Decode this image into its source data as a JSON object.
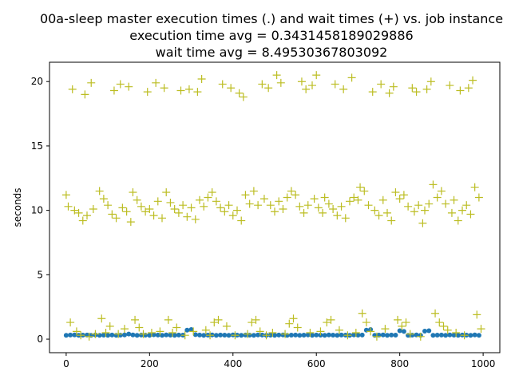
{
  "chart_data": {
    "type": "scatter",
    "title_lines": [
      "00a-sleep master execution times (.) and wait times (+) vs. job instance",
      "execution time avg = 0.3431458189029886",
      "wait time avg = 8.49530367803092"
    ],
    "xlabel": "",
    "ylabel": "seconds",
    "xlim": [
      -40,
      1040
    ],
    "ylim": [
      -1.05,
      21.5
    ],
    "xticks": [
      0,
      200,
      400,
      600,
      800,
      1000
    ],
    "yticks": [
      0,
      5,
      10,
      15,
      20
    ],
    "grid": false,
    "colors": {
      "execution": "#1f77b4",
      "wait": "#bcbd22"
    },
    "series": [
      {
        "marker": "dot",
        "color": "#1f77b4",
        "values": [
          [
            0,
            0.3
          ],
          [
            10,
            0.32
          ],
          [
            20,
            0.33
          ],
          [
            30,
            0.3
          ],
          [
            40,
            0.31
          ],
          [
            50,
            0.32
          ],
          [
            60,
            0.3
          ],
          [
            70,
            0.33
          ],
          [
            80,
            0.3
          ],
          [
            90,
            0.31
          ],
          [
            100,
            0.3
          ],
          [
            110,
            0.32
          ],
          [
            120,
            0.3
          ],
          [
            130,
            0.31
          ],
          [
            140,
            0.33
          ],
          [
            150,
            0.4
          ],
          [
            160,
            0.33
          ],
          [
            170,
            0.3
          ],
          [
            180,
            0.32
          ],
          [
            190,
            0.31
          ],
          [
            200,
            0.3
          ],
          [
            210,
            0.34
          ],
          [
            220,
            0.32
          ],
          [
            230,
            0.3
          ],
          [
            240,
            0.33
          ],
          [
            250,
            0.31
          ],
          [
            260,
            0.3
          ],
          [
            270,
            0.32
          ],
          [
            280,
            0.31
          ],
          [
            290,
            0.7
          ],
          [
            300,
            0.75
          ],
          [
            310,
            0.35
          ],
          [
            320,
            0.32
          ],
          [
            330,
            0.3
          ],
          [
            340,
            0.31
          ],
          [
            350,
            0.33
          ],
          [
            360,
            0.3
          ],
          [
            370,
            0.32
          ],
          [
            380,
            0.31
          ],
          [
            390,
            0.3
          ],
          [
            400,
            0.33
          ],
          [
            410,
            0.31
          ],
          [
            420,
            0.3
          ],
          [
            430,
            0.32
          ],
          [
            440,
            0.31
          ],
          [
            450,
            0.3
          ],
          [
            460,
            0.33
          ],
          [
            470,
            0.32
          ],
          [
            480,
            0.3
          ],
          [
            490,
            0.31
          ],
          [
            500,
            0.3
          ],
          [
            510,
            0.32
          ],
          [
            520,
            0.33
          ],
          [
            530,
            0.3
          ],
          [
            540,
            0.31
          ],
          [
            550,
            0.32
          ],
          [
            560,
            0.3
          ],
          [
            570,
            0.31
          ],
          [
            580,
            0.33
          ],
          [
            590,
            0.3
          ],
          [
            600,
            0.32
          ],
          [
            610,
            0.31
          ],
          [
            620,
            0.3
          ],
          [
            630,
            0.33
          ],
          [
            640,
            0.31
          ],
          [
            650,
            0.3
          ],
          [
            660,
            0.32
          ],
          [
            670,
            0.31
          ],
          [
            680,
            0.3
          ],
          [
            690,
            0.33
          ],
          [
            700,
            0.31
          ],
          [
            710,
            0.32
          ],
          [
            720,
            0.7
          ],
          [
            730,
            0.75
          ],
          [
            740,
            0.3
          ],
          [
            750,
            0.31
          ],
          [
            760,
            0.33
          ],
          [
            770,
            0.3
          ],
          [
            780,
            0.32
          ],
          [
            790,
            0.31
          ],
          [
            800,
            0.65
          ],
          [
            810,
            0.6
          ],
          [
            820,
            0.3
          ],
          [
            830,
            0.31
          ],
          [
            840,
            0.33
          ],
          [
            850,
            0.3
          ],
          [
            860,
            0.62
          ],
          [
            870,
            0.65
          ],
          [
            880,
            0.3
          ],
          [
            890,
            0.31
          ],
          [
            900,
            0.32
          ],
          [
            910,
            0.3
          ],
          [
            920,
            0.33
          ],
          [
            930,
            0.31
          ],
          [
            940,
            0.3
          ],
          [
            950,
            0.32
          ],
          [
            960,
            0.31
          ],
          [
            970,
            0.3
          ],
          [
            980,
            0.33
          ],
          [
            990,
            0.3
          ]
        ]
      },
      {
        "marker": "plus",
        "color": "#bcbd22",
        "values": [
          [
            0,
            11.2
          ],
          [
            5,
            10.3
          ],
          [
            10,
            1.3
          ],
          [
            15,
            19.4
          ],
          [
            20,
            10.0
          ],
          [
            25,
            0.6
          ],
          [
            30,
            9.8
          ],
          [
            35,
            0.3
          ],
          [
            40,
            9.2
          ],
          [
            45,
            19.0
          ],
          [
            50,
            9.6
          ],
          [
            55,
            0.2
          ],
          [
            60,
            19.9
          ],
          [
            65,
            10.1
          ],
          [
            70,
            0.4
          ],
          [
            80,
            11.5
          ],
          [
            85,
            1.6
          ],
          [
            90,
            10.9
          ],
          [
            95,
            0.5
          ],
          [
            100,
            10.4
          ],
          [
            105,
            1.0
          ],
          [
            110,
            9.7
          ],
          [
            115,
            19.3
          ],
          [
            120,
            9.4
          ],
          [
            125,
            0.4
          ],
          [
            130,
            19.8
          ],
          [
            135,
            10.2
          ],
          [
            140,
            0.8
          ],
          [
            145,
            9.9
          ],
          [
            150,
            19.6
          ],
          [
            155,
            9.1
          ],
          [
            160,
            11.4
          ],
          [
            165,
            1.5
          ],
          [
            170,
            10.8
          ],
          [
            175,
            0.9
          ],
          [
            180,
            10.3
          ],
          [
            185,
            0.4
          ],
          [
            190,
            9.9
          ],
          [
            195,
            19.2
          ],
          [
            200,
            10.1
          ],
          [
            205,
            0.5
          ],
          [
            210,
            9.6
          ],
          [
            215,
            19.9
          ],
          [
            220,
            10.7
          ],
          [
            225,
            0.6
          ],
          [
            230,
            9.4
          ],
          [
            235,
            19.5
          ],
          [
            240,
            11.4
          ],
          [
            245,
            1.5
          ],
          [
            250,
            10.6
          ],
          [
            255,
            0.5
          ],
          [
            260,
            10.1
          ],
          [
            265,
            0.9
          ],
          [
            270,
            9.8
          ],
          [
            275,
            19.3
          ],
          [
            280,
            10.4
          ],
          [
            285,
            0.3
          ],
          [
            290,
            9.5
          ],
          [
            295,
            19.4
          ],
          [
            300,
            10.2
          ],
          [
            305,
            0.6
          ],
          [
            310,
            9.3
          ],
          [
            315,
            19.2
          ],
          [
            320,
            10.8
          ],
          [
            325,
            20.2
          ],
          [
            330,
            10.3
          ],
          [
            335,
            0.7
          ],
          [
            340,
            11.0
          ],
          [
            345,
            0.3
          ],
          [
            350,
            11.4
          ],
          [
            355,
            1.3
          ],
          [
            360,
            10.7
          ],
          [
            365,
            1.5
          ],
          [
            370,
            10.2
          ],
          [
            375,
            19.8
          ],
          [
            380,
            9.9
          ],
          [
            385,
            1.0
          ],
          [
            390,
            10.4
          ],
          [
            395,
            19.5
          ],
          [
            400,
            9.6
          ],
          [
            405,
            0.3
          ],
          [
            410,
            10.0
          ],
          [
            415,
            19.1
          ],
          [
            420,
            9.2
          ],
          [
            425,
            18.8
          ],
          [
            430,
            11.2
          ],
          [
            435,
            0.4
          ],
          [
            440,
            10.5
          ],
          [
            445,
            1.3
          ],
          [
            450,
            11.5
          ],
          [
            455,
            1.5
          ],
          [
            460,
            10.4
          ],
          [
            465,
            0.6
          ],
          [
            470,
            19.8
          ],
          [
            475,
            10.9
          ],
          [
            480,
            0.3
          ],
          [
            485,
            19.5
          ],
          [
            490,
            10.4
          ],
          [
            495,
            0.5
          ],
          [
            500,
            9.9
          ],
          [
            505,
            20.5
          ],
          [
            510,
            10.7
          ],
          [
            515,
            19.9
          ],
          [
            520,
            10.1
          ],
          [
            525,
            0.4
          ],
          [
            530,
            11.0
          ],
          [
            535,
            1.2
          ],
          [
            540,
            11.5
          ],
          [
            545,
            1.6
          ],
          [
            550,
            11.2
          ],
          [
            555,
            0.9
          ],
          [
            560,
            10.3
          ],
          [
            565,
            20.0
          ],
          [
            570,
            9.8
          ],
          [
            575,
            19.4
          ],
          [
            580,
            10.4
          ],
          [
            585,
            0.5
          ],
          [
            590,
            19.7
          ],
          [
            595,
            10.9
          ],
          [
            600,
            20.5
          ],
          [
            605,
            10.2
          ],
          [
            610,
            0.6
          ],
          [
            615,
            9.8
          ],
          [
            620,
            11.0
          ],
          [
            625,
            1.3
          ],
          [
            630,
            10.5
          ],
          [
            635,
            1.5
          ],
          [
            640,
            10.1
          ],
          [
            645,
            19.8
          ],
          [
            650,
            9.6
          ],
          [
            655,
            0.7
          ],
          [
            660,
            10.3
          ],
          [
            665,
            19.4
          ],
          [
            670,
            9.4
          ],
          [
            675,
            0.3
          ],
          [
            680,
            10.7
          ],
          [
            685,
            20.3
          ],
          [
            690,
            11.0
          ],
          [
            695,
            0.5
          ],
          [
            700,
            10.8
          ],
          [
            705,
            11.8
          ],
          [
            710,
            2.0
          ],
          [
            715,
            11.5
          ],
          [
            720,
            1.3
          ],
          [
            725,
            10.4
          ],
          [
            730,
            0.6
          ],
          [
            735,
            19.2
          ],
          [
            740,
            10.0
          ],
          [
            745,
            0.2
          ],
          [
            750,
            9.6
          ],
          [
            755,
            19.8
          ],
          [
            760,
            10.8
          ],
          [
            765,
            0.8
          ],
          [
            770,
            9.8
          ],
          [
            775,
            19.1
          ],
          [
            780,
            9.2
          ],
          [
            785,
            19.6
          ],
          [
            790,
            11.4
          ],
          [
            795,
            1.5
          ],
          [
            800,
            10.9
          ],
          [
            805,
            1.0
          ],
          [
            810,
            11.2
          ],
          [
            815,
            1.3
          ],
          [
            820,
            10.3
          ],
          [
            825,
            0.4
          ],
          [
            830,
            19.5
          ],
          [
            835,
            9.9
          ],
          [
            840,
            19.2
          ],
          [
            845,
            10.4
          ],
          [
            850,
            0.2
          ],
          [
            855,
            9.0
          ],
          [
            860,
            10.0
          ],
          [
            865,
            19.4
          ],
          [
            870,
            10.5
          ],
          [
            875,
            20.0
          ],
          [
            880,
            12.0
          ],
          [
            885,
            2.0
          ],
          [
            890,
            11.0
          ],
          [
            895,
            1.3
          ],
          [
            900,
            11.5
          ],
          [
            905,
            1.0
          ],
          [
            910,
            10.5
          ],
          [
            915,
            0.7
          ],
          [
            920,
            19.7
          ],
          [
            925,
            9.8
          ],
          [
            930,
            10.8
          ],
          [
            935,
            0.5
          ],
          [
            940,
            9.2
          ],
          [
            945,
            19.3
          ],
          [
            950,
            10.0
          ],
          [
            955,
            0.3
          ],
          [
            960,
            10.4
          ],
          [
            965,
            19.5
          ],
          [
            970,
            9.7
          ],
          [
            975,
            20.1
          ],
          [
            980,
            11.8
          ],
          [
            985,
            1.9
          ],
          [
            990,
            11.0
          ],
          [
            995,
            0.8
          ]
        ]
      }
    ]
  }
}
